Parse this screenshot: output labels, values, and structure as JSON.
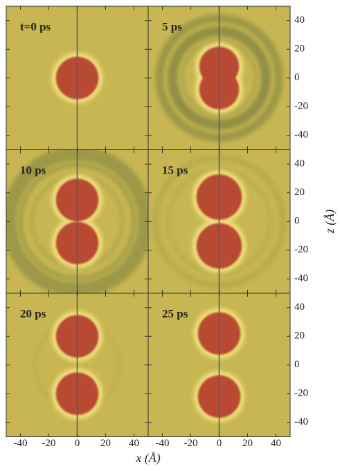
{
  "chart_data": [
    {
      "type": "image",
      "title": "t=0 ps",
      "xlim": [
        -50,
        50
      ],
      "ylim": [
        -50,
        50
      ],
      "xticks": [
        -40,
        -20,
        0,
        20,
        40
      ],
      "yticks": [
        -40,
        -20,
        0,
        20,
        40
      ]
    },
    {
      "type": "image",
      "title": "5 ps",
      "xlim": [
        -50,
        50
      ],
      "ylim": [
        -50,
        50
      ],
      "xticks": [
        -40,
        -20,
        0,
        20,
        40
      ],
      "yticks": [
        -40,
        -20,
        0,
        20,
        40
      ]
    },
    {
      "type": "image",
      "title": "10 ps",
      "xlim": [
        -50,
        50
      ],
      "ylim": [
        -50,
        50
      ],
      "xticks": [
        -40,
        -20,
        0,
        20,
        40
      ],
      "yticks": [
        -40,
        -20,
        0,
        20,
        40
      ]
    },
    {
      "type": "image",
      "title": "15 ps",
      "xlim": [
        -50,
        50
      ],
      "ylim": [
        -50,
        50
      ],
      "xticks": [
        -40,
        -20,
        0,
        20,
        40
      ],
      "yticks": [
        -40,
        -20,
        0,
        20,
        40
      ]
    },
    {
      "type": "image",
      "title": "20 ps",
      "xlim": [
        -50,
        50
      ],
      "ylim": [
        -50,
        50
      ],
      "xticks": [
        -40,
        -20,
        0,
        20,
        40
      ],
      "yticks": [
        -40,
        -20,
        0,
        20,
        40
      ]
    },
    {
      "type": "image",
      "title": "25 ps",
      "xlim": [
        -50,
        50
      ],
      "ylim": [
        -50,
        50
      ],
      "xticks": [
        -40,
        -20,
        0,
        20,
        40
      ],
      "yticks": [
        -40,
        -20,
        0,
        20,
        40
      ]
    }
  ],
  "xlabel": "x (Å)",
  "ylabel": "z (Å)"
}
